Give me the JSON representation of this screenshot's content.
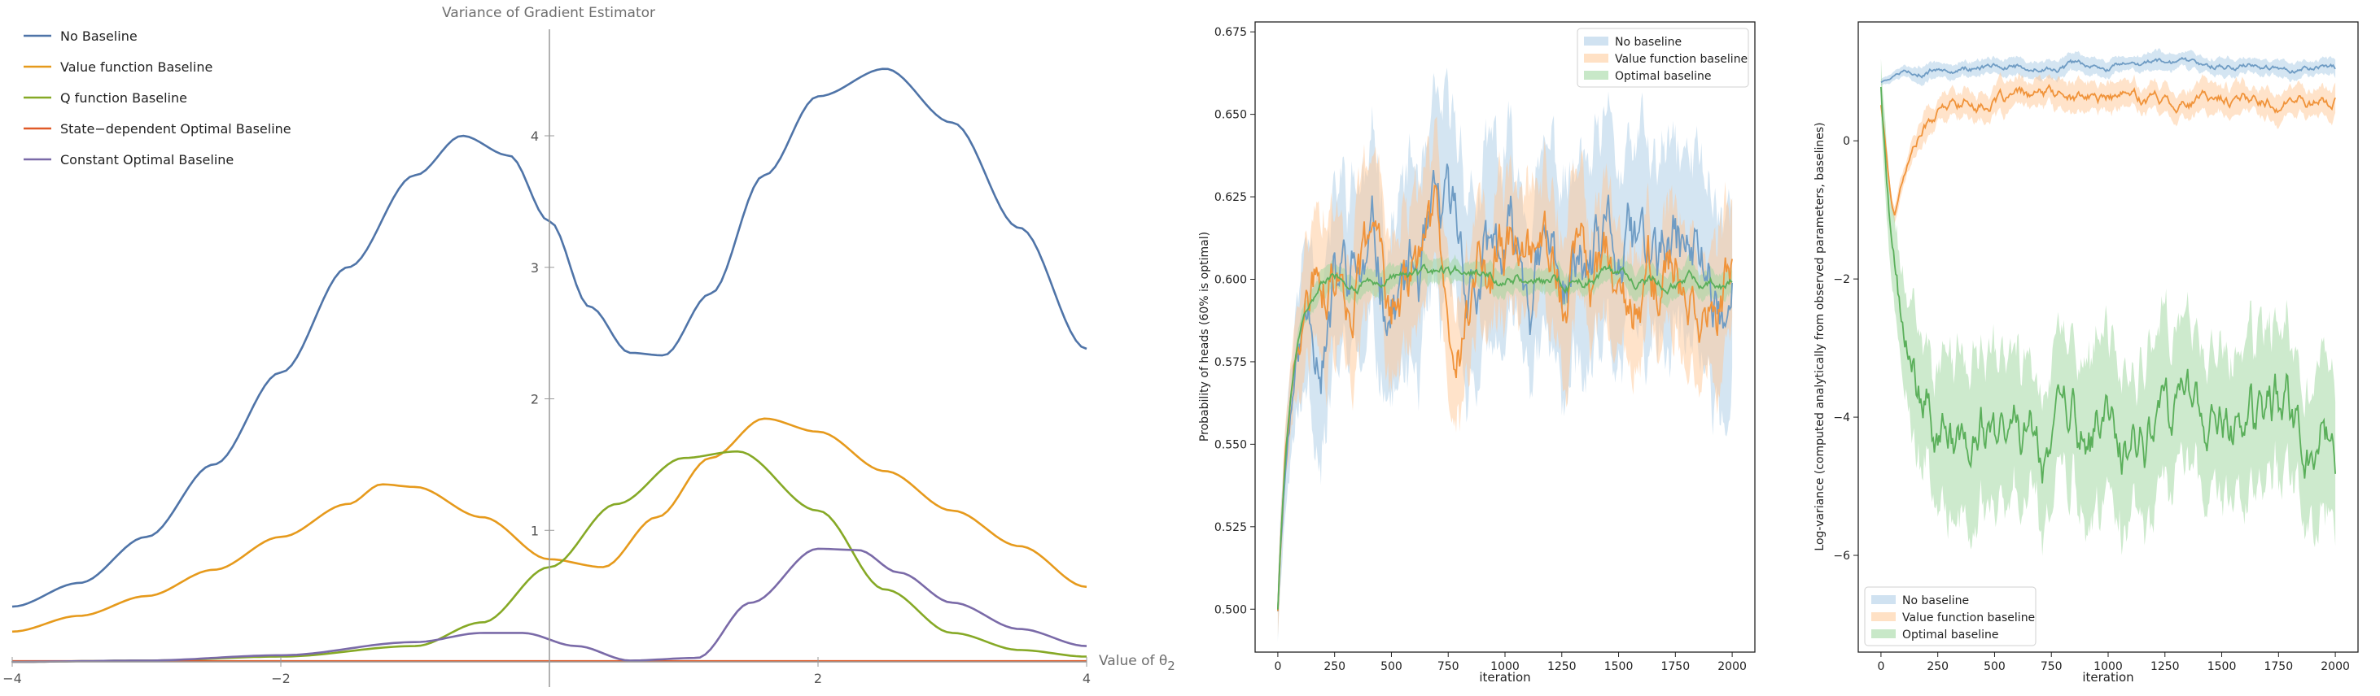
{
  "chart_data": [
    {
      "type": "line",
      "title": "Variance of Gradient Estimator",
      "xlabel": "Value of θ",
      "xlabel_sub": "2",
      "ylabel": "",
      "xlim": [
        -4,
        4
      ],
      "ylim": [
        0,
        4.8
      ],
      "xticks": [
        -4,
        -2,
        2,
        4
      ],
      "xtick_labels": [
        "−4",
        "−2",
        "2",
        "4"
      ],
      "yticks": [
        1,
        2,
        3,
        4
      ],
      "ytick_labels": [
        "1",
        "2",
        "3",
        "4"
      ],
      "legend_position": "top-left",
      "series": [
        {
          "name": "No Baseline",
          "color": "#4f74a8",
          "x": [
            -4,
            -3.5,
            -3,
            -2.5,
            -2,
            -1.5,
            -1,
            -0.65,
            -0.3,
            0,
            0.3,
            0.6,
            0.85,
            1.2,
            1.6,
            2,
            2.5,
            3,
            3.5,
            4
          ],
          "y": [
            0.42,
            0.6,
            0.95,
            1.5,
            2.2,
            3.0,
            3.7,
            4.0,
            3.85,
            3.35,
            2.7,
            2.35,
            2.33,
            2.8,
            3.7,
            4.3,
            4.51,
            4.1,
            3.3,
            2.38
          ]
        },
        {
          "name": "Value function Baseline",
          "color": "#e69a1c",
          "x": [
            -4,
            -3.5,
            -3,
            -2.5,
            -2,
            -1.5,
            -1.25,
            -1,
            -0.5,
            0,
            0.4,
            0.8,
            1.2,
            1.6,
            2,
            2.5,
            3,
            3.5,
            4
          ],
          "y": [
            0.23,
            0.35,
            0.5,
            0.7,
            0.95,
            1.2,
            1.35,
            1.33,
            1.1,
            0.78,
            0.72,
            1.1,
            1.55,
            1.85,
            1.75,
            1.45,
            1.15,
            0.88,
            0.57
          ]
        },
        {
          "name": "Q function Baseline",
          "color": "#86a926",
          "x": [
            -4,
            -3,
            -2,
            -1,
            -0.5,
            0,
            0.5,
            1,
            1.4,
            2,
            2.5,
            3,
            3.5,
            4
          ],
          "y": [
            0,
            0.01,
            0.04,
            0.12,
            0.3,
            0.72,
            1.2,
            1.55,
            1.6,
            1.15,
            0.55,
            0.22,
            0.09,
            0.04
          ]
        },
        {
          "name": "State−dependent Optimal Baseline",
          "color": "#e05a28",
          "x": [
            -4,
            4
          ],
          "y": [
            0.005,
            0.005
          ]
        },
        {
          "name": "Constant Optimal Baseline",
          "color": "#7a6aa8",
          "x": [
            -4,
            -3,
            -2,
            -1,
            -0.5,
            -0.2,
            0.2,
            0.6,
            1.1,
            1.5,
            2,
            2.3,
            2.6,
            3,
            3.5,
            4
          ],
          "y": [
            0,
            0.01,
            0.05,
            0.15,
            0.22,
            0.22,
            0.12,
            0.01,
            0.03,
            0.45,
            0.86,
            0.85,
            0.68,
            0.45,
            0.25,
            0.12
          ]
        }
      ]
    },
    {
      "type": "line",
      "title": "",
      "xlabel": "iteration",
      "ylabel": "Probability of heads (60% is optimal)",
      "xlim": [
        -100,
        2100
      ],
      "ylim": [
        0.487,
        0.678
      ],
      "xticks": [
        0,
        250,
        500,
        750,
        1000,
        1250,
        1500,
        1750,
        2000
      ],
      "xtick_labels": [
        "0",
        "250",
        "500",
        "750",
        "1000",
        "1250",
        "1500",
        "1750",
        "2000"
      ],
      "yticks": [
        0.5,
        0.525,
        0.55,
        0.575,
        0.6,
        0.625,
        0.65,
        0.675
      ],
      "ytick_labels": [
        "0.500",
        "0.525",
        "0.550",
        "0.575",
        "0.600",
        "0.625",
        "0.650",
        "0.675"
      ],
      "legend_position": "top-right",
      "series": [
        {
          "name": "No baseline",
          "color": "#6f9cc4",
          "band_color": "#aacbe5",
          "band_halfwidth": 0.028,
          "noise": 0.0085,
          "target": 0.598,
          "rise": 55,
          "start": 0.5,
          "seed": 11
        },
        {
          "name": "Value function baseline",
          "color": "#f0933a",
          "band_color": "#ffc896",
          "band_halfwidth": 0.02,
          "noise": 0.0075,
          "target": 0.6,
          "rise": 60,
          "start": 0.5,
          "seed": 29
        },
        {
          "name": "Optimal baseline",
          "color": "#5aaf5a",
          "band_color": "#9bd69b",
          "band_halfwidth": 0.004,
          "noise": 0.0012,
          "target": 0.6,
          "rise": 55,
          "start": 0.5,
          "seed": 47
        }
      ]
    },
    {
      "type": "line",
      "title": "",
      "xlabel": "iteration",
      "ylabel": "Log-variance (computed analytically from observed parameters, baselines)",
      "xlim": [
        -100,
        2100
      ],
      "ylim": [
        -7.4,
        1.72
      ],
      "xticks": [
        0,
        250,
        500,
        750,
        1000,
        1250,
        1500,
        1750,
        2000
      ],
      "xtick_labels": [
        "0",
        "250",
        "500",
        "750",
        "1000",
        "1250",
        "1500",
        "1750",
        "2000"
      ],
      "yticks": [
        0,
        -2,
        -4,
        -6
      ],
      "ytick_labels": [
        "0",
        "−2",
        "−4",
        "−6"
      ],
      "legend_position": "bottom-left",
      "series": [
        {
          "name": "No baseline",
          "color": "#6f9cc4",
          "band_color": "#aacbe5",
          "band_halfwidth": 0.12,
          "noise": 0.03,
          "target": 1.08,
          "start": 0.85,
          "rise": 120,
          "seed": 5
        },
        {
          "name": "Value function baseline",
          "color": "#f0933a",
          "band_color": "#ffc896",
          "band_halfwidth": 0.2,
          "noise": 0.06,
          "target": 0.6,
          "start": 0.8,
          "dip": -1.05,
          "dip_at": 60,
          "rise": 90,
          "seed": 17
        },
        {
          "name": "Optimal baseline",
          "color": "#5aaf5a",
          "band_color": "#9bd69b",
          "band_halfwidth": 1.1,
          "noise": 0.3,
          "target": -4.4,
          "start": 0.8,
          "rise": 80,
          "seed": 71
        }
      ]
    }
  ]
}
